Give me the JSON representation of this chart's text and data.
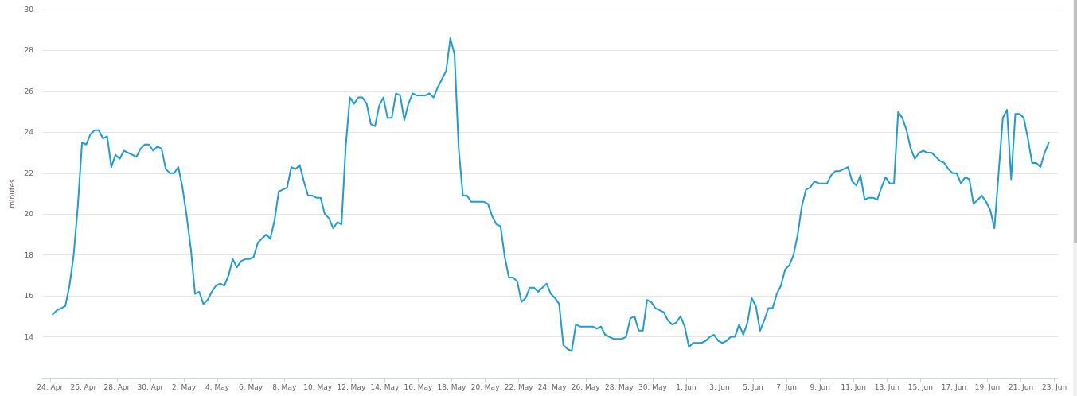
{
  "chart_data": {
    "type": "line",
    "ylabel": "minutes",
    "color": "#1b9dd6",
    "marker": "none",
    "grid": "y",
    "xlim": [
      "--04-23T14:00",
      "--06-23T05:00"
    ],
    "xticks": [
      {
        "value": "--04-24",
        "label": "24. Apr"
      },
      {
        "value": "--04-26",
        "label": "26. Apr"
      },
      {
        "value": "--04-28",
        "label": "28. Apr"
      },
      {
        "value": "--04-30",
        "label": "30. Apr"
      },
      {
        "value": "--05-02",
        "label": "2. May"
      },
      {
        "value": "--05-04",
        "label": "4. May"
      },
      {
        "value": "--05-06",
        "label": "6. May"
      },
      {
        "value": "--05-08",
        "label": "8. May"
      },
      {
        "value": "--05-10",
        "label": "10. May"
      },
      {
        "value": "--05-12",
        "label": "12. May"
      },
      {
        "value": "--05-14",
        "label": "14. May"
      },
      {
        "value": "--05-16",
        "label": "16. May"
      },
      {
        "value": "--05-18",
        "label": "18. May"
      },
      {
        "value": "--05-20",
        "label": "20. May"
      },
      {
        "value": "--05-22",
        "label": "22. May"
      },
      {
        "value": "--05-24",
        "label": "24. May"
      },
      {
        "value": "--05-26",
        "label": "26. May"
      },
      {
        "value": "--05-28",
        "label": "28. May"
      },
      {
        "value": "--05-30",
        "label": "30. May"
      },
      {
        "value": "--06-01",
        "label": "1. Jun"
      },
      {
        "value": "--06-03",
        "label": "3. Jun"
      },
      {
        "value": "--06-05",
        "label": "5. Jun"
      },
      {
        "value": "--06-07",
        "label": "7. Jun"
      },
      {
        "value": "--06-09",
        "label": "9. Jun"
      },
      {
        "value": "--06-11",
        "label": "11. Jun"
      },
      {
        "value": "--06-13",
        "label": "13. Jun"
      },
      {
        "value": "--06-15",
        "label": "15. Jun"
      },
      {
        "value": "--06-17",
        "label": "17. Jun"
      },
      {
        "value": "--06-19",
        "label": "19. Jun"
      },
      {
        "value": "--06-21",
        "label": "21. Jun"
      },
      {
        "value": "--06-23",
        "label": "23. Jun"
      }
    ],
    "ylim": [
      12,
      30
    ],
    "yticks": [
      14,
      16,
      18,
      20,
      22,
      24,
      26,
      28,
      30
    ],
    "x": [
      "--04-24T04:00",
      "--04-24T10:00",
      "--04-24T16:00",
      "--04-24T22:00",
      "--04-25T04:00",
      "--04-25T10:00",
      "--04-25T16:00",
      "--04-25T22:00",
      "--04-26T04:00",
      "--04-26T10:00",
      "--04-26T16:00",
      "--04-26T22:00",
      "--04-27T04:00",
      "--04-27T10:00",
      "--04-27T16:00",
      "--04-27T22:00",
      "--04-28T04:00",
      "--04-28T10:00",
      "--04-28T16:00",
      "--04-28T22:00",
      "--04-29T04:00",
      "--04-29T10:00",
      "--04-29T16:00",
      "--04-29T22:00",
      "--04-30T04:00",
      "--04-30T10:00",
      "--04-30T16:00",
      "--04-30T22:00",
      "--05-01T04:00",
      "--05-01T10:00",
      "--05-01T16:00",
      "--05-01T22:00",
      "--05-02T04:00",
      "--05-02T10:00",
      "--05-02T16:00",
      "--05-02T22:00",
      "--05-03T04:00",
      "--05-03T10:00",
      "--05-03T16:00",
      "--05-03T22:00",
      "--05-04T04:00",
      "--05-04T10:00",
      "--05-04T16:00",
      "--05-04T22:00",
      "--05-05T04:00",
      "--05-05T10:00",
      "--05-05T16:00",
      "--05-05T22:00",
      "--05-06T04:00",
      "--05-06T10:00",
      "--05-06T16:00",
      "--05-06T22:00",
      "--05-07T04:00",
      "--05-07T10:00",
      "--05-07T16:00",
      "--05-07T22:00",
      "--05-08T04:00",
      "--05-08T10:00",
      "--05-08T16:00",
      "--05-08T22:00",
      "--05-09T04:00",
      "--05-09T10:00",
      "--05-09T16:00",
      "--05-09T22:00",
      "--05-10T04:00",
      "--05-10T10:00",
      "--05-10T16:00",
      "--05-10T22:00",
      "--05-11T04:00",
      "--05-11T10:00",
      "--05-11T16:00",
      "--05-11T22:00",
      "--05-12T04:00",
      "--05-12T10:00",
      "--05-12T16:00",
      "--05-12T22:00",
      "--05-13T04:00",
      "--05-13T10:00",
      "--05-13T16:00",
      "--05-13T22:00",
      "--05-14T04:00",
      "--05-14T10:00",
      "--05-14T16:00",
      "--05-14T22:00",
      "--05-15T04:00",
      "--05-15T10:00",
      "--05-15T16:00",
      "--05-15T22:00",
      "--05-16T04:00",
      "--05-16T10:00",
      "--05-16T16:00",
      "--05-16T22:00",
      "--05-17T04:00",
      "--05-17T10:00",
      "--05-17T16:00",
      "--05-17T22:00",
      "--05-18T04:00",
      "--05-18T10:00",
      "--05-18T16:00",
      "--05-18T22:00",
      "--05-19T04:00",
      "--05-19T10:00",
      "--05-19T16:00",
      "--05-19T22:00",
      "--05-20T04:00",
      "--05-20T10:00",
      "--05-20T16:00",
      "--05-20T22:00",
      "--05-21T04:00",
      "--05-21T10:00",
      "--05-21T16:00",
      "--05-21T22:00",
      "--05-22T04:00",
      "--05-22T10:00",
      "--05-22T16:00",
      "--05-22T22:00",
      "--05-23T04:00",
      "--05-23T10:00",
      "--05-23T16:00",
      "--05-23T22:00",
      "--05-24T04:00",
      "--05-24T10:00",
      "--05-24T16:00",
      "--05-24T22:00",
      "--05-25T04:00",
      "--05-25T10:00",
      "--05-25T16:00",
      "--05-25T22:00",
      "--05-26T04:00",
      "--05-26T10:00",
      "--05-26T16:00",
      "--05-26T22:00",
      "--05-27T04:00",
      "--05-27T10:00",
      "--05-27T16:00",
      "--05-27T22:00",
      "--05-28T04:00",
      "--05-28T10:00",
      "--05-28T16:00",
      "--05-28T22:00",
      "--05-29T04:00",
      "--05-29T10:00",
      "--05-29T16:00",
      "--05-29T22:00",
      "--05-30T04:00",
      "--05-30T10:00",
      "--05-30T16:00",
      "--05-30T22:00",
      "--05-31T04:00",
      "--05-31T10:00",
      "--05-31T16:00",
      "--05-31T22:00",
      "--06-01T04:00",
      "--06-01T10:00",
      "--06-01T16:00",
      "--06-01T22:00",
      "--06-02T04:00",
      "--06-02T10:00",
      "--06-02T16:00",
      "--06-02T22:00",
      "--06-03T04:00",
      "--06-03T10:00",
      "--06-03T16:00",
      "--06-03T22:00",
      "--06-04T04:00",
      "--06-04T10:00",
      "--06-04T16:00",
      "--06-04T22:00",
      "--06-05T04:00",
      "--06-05T10:00",
      "--06-05T16:00",
      "--06-05T22:00",
      "--06-06T04:00",
      "--06-06T10:00",
      "--06-06T16:00",
      "--06-06T22:00",
      "--06-07T04:00",
      "--06-07T10:00",
      "--06-07T16:00",
      "--06-07T22:00",
      "--06-08T04:00",
      "--06-08T10:00",
      "--06-08T16:00",
      "--06-08T22:00",
      "--06-09T04:00",
      "--06-09T10:00",
      "--06-09T16:00",
      "--06-09T22:00",
      "--06-10T04:00",
      "--06-10T10:00",
      "--06-10T16:00",
      "--06-10T22:00",
      "--06-11T04:00",
      "--06-11T10:00",
      "--06-11T16:00",
      "--06-11T22:00",
      "--06-12T04:00",
      "--06-12T10:00",
      "--06-12T16:00",
      "--06-12T22:00",
      "--06-13T04:00",
      "--06-13T10:00",
      "--06-13T16:00",
      "--06-13T22:00",
      "--06-14T04:00",
      "--06-14T10:00",
      "--06-14T16:00",
      "--06-14T22:00",
      "--06-15T04:00",
      "--06-15T10:00",
      "--06-15T16:00",
      "--06-15T22:00",
      "--06-16T04:00",
      "--06-16T10:00",
      "--06-16T16:00",
      "--06-16T22:00",
      "--06-17T04:00",
      "--06-17T10:00",
      "--06-17T16:00",
      "--06-17T22:00",
      "--06-18T04:00",
      "--06-18T10:00",
      "--06-18T16:00",
      "--06-18T22:00",
      "--06-19T04:00",
      "--06-19T10:00",
      "--06-19T16:00",
      "--06-19T22:00",
      "--06-20T04:00",
      "--06-20T10:00",
      "--06-20T16:00",
      "--06-20T22:00",
      "--06-21T04:00",
      "--06-21T10:00",
      "--06-21T16:00",
      "--06-21T22:00",
      "--06-22T04:00",
      "--06-22T10:00",
      "--06-22T16:00"
    ],
    "values": [
      15.1,
      15.3,
      15.4,
      15.5,
      16.5,
      18.0,
      20.4,
      23.5,
      23.4,
      23.9,
      24.1,
      24.1,
      23.7,
      23.8,
      22.3,
      22.9,
      22.7,
      23.1,
      23.0,
      22.9,
      22.8,
      23.2,
      23.4,
      23.4,
      23.1,
      23.3,
      23.2,
      22.2,
      22.0,
      22.0,
      22.3,
      21.3,
      19.9,
      18.3,
      16.1,
      16.2,
      15.6,
      15.8,
      16.2,
      16.5,
      16.6,
      16.5,
      17.0,
      17.8,
      17.4,
      17.7,
      17.8,
      17.8,
      17.9,
      18.6,
      18.8,
      19.0,
      18.8,
      19.7,
      21.1,
      21.2,
      21.3,
      22.3,
      22.2,
      22.4,
      21.6,
      20.9,
      20.9,
      20.8,
      20.8,
      20.0,
      19.8,
      19.3,
      19.6,
      19.5,
      23.3,
      25.7,
      25.4,
      25.7,
      25.7,
      25.4,
      24.4,
      24.3,
      25.3,
      25.7,
      24.7,
      24.7,
      25.9,
      25.8,
      24.6,
      25.4,
      25.9,
      25.8,
      25.8,
      25.8,
      25.9,
      25.7,
      26.2,
      26.6,
      27.0,
      28.6,
      27.8,
      23.2,
      20.9,
      20.9,
      20.6,
      20.6,
      20.6,
      20.6,
      20.5,
      19.9,
      19.5,
      19.4,
      17.9,
      16.9,
      16.9,
      16.7,
      15.7,
      15.9,
      16.4,
      16.4,
      16.2,
      16.4,
      16.6,
      16.1,
      15.9,
      15.6,
      13.6,
      13.4,
      13.3,
      14.6,
      14.5,
      14.5,
      14.5,
      14.5,
      14.4,
      14.5,
      14.1,
      14.0,
      13.9,
      13.9,
      13.9,
      14.0,
      14.9,
      15.0,
      14.3,
      14.3,
      15.8,
      15.7,
      15.4,
      15.3,
      15.2,
      14.8,
      14.6,
      14.7,
      15.0,
      14.5,
      13.5,
      13.7,
      13.7,
      13.7,
      13.8,
      14.0,
      14.1,
      13.8,
      13.7,
      13.8,
      14.0,
      14.0,
      14.6,
      14.1,
      14.7,
      15.9,
      15.5,
      14.3,
      14.8,
      15.4,
      15.4,
      16.1,
      16.5,
      17.3,
      17.5,
      18.0,
      19.0,
      20.4,
      21.2,
      21.3,
      21.6,
      21.5,
      21.5,
      21.5,
      21.9,
      22.1,
      22.1,
      22.2,
      22.3,
      21.6,
      21.4,
      21.9,
      20.7,
      20.8,
      20.8,
      20.7,
      21.3,
      21.8,
      21.5,
      21.5,
      25.0,
      24.7,
      24.1,
      23.2,
      22.7,
      23.0,
      23.1,
      23.0,
      23.0,
      22.8,
      22.6,
      22.5,
      22.2,
      22.0,
      22.0,
      21.5,
      21.8,
      21.7,
      20.5,
      20.7,
      20.9,
      20.6,
      20.2,
      19.3,
      22.0,
      24.7,
      25.1,
      21.7,
      24.9,
      24.9,
      24.7,
      23.7,
      22.5,
      22.5,
      22.3,
      23.0,
      23.5
    ]
  }
}
